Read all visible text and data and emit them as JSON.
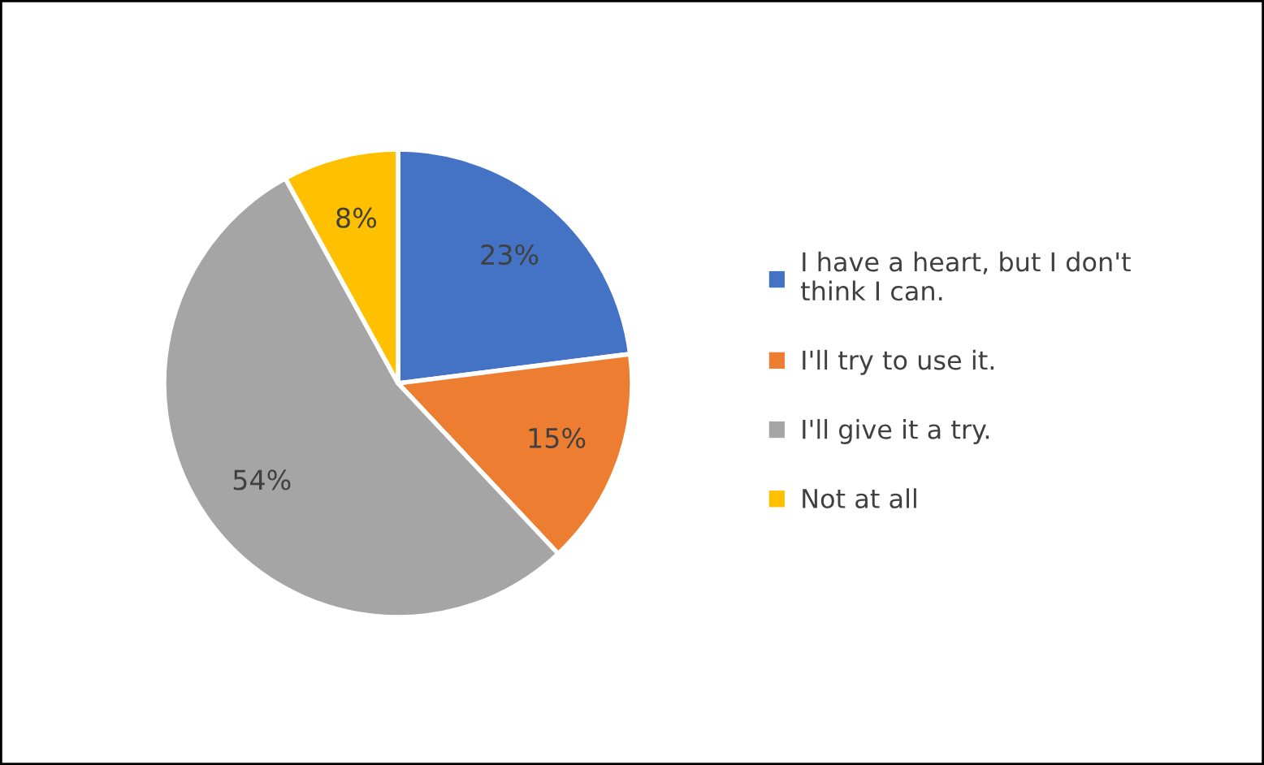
{
  "chart_data": {
    "type": "pie",
    "categories": [
      "I have a heart, but I don't\nthink I can.",
      "I'll try to use it.",
      "I'll give it a try.",
      "Not at all"
    ],
    "values": [
      23,
      15,
      54,
      8
    ],
    "colors": [
      "#4472c4",
      "#ed7d31",
      "#a5a5a5",
      "#ffc000"
    ],
    "value_labels": [
      "23%",
      "15%",
      "54%",
      "8%"
    ],
    "legend": "right"
  }
}
